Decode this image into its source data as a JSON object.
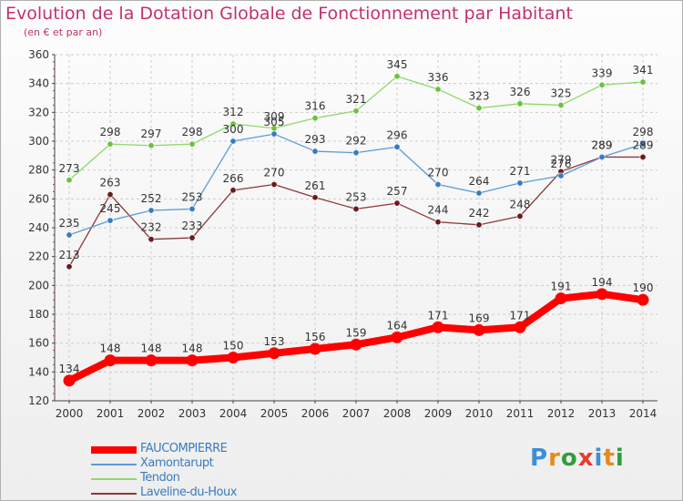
{
  "title": "Evolution de la Dotation Globale de Fonctionnement par Habitant",
  "subtitle": "(en € et par an)",
  "colors": {
    "title": "#c3306e",
    "grid": "#cccccc",
    "axis": "#444444",
    "tick_text": "#333333"
  },
  "logo": {
    "letters": [
      "P",
      "r",
      "o",
      "x",
      "i",
      "t",
      "i"
    ],
    "colors": [
      "#3a8fd6",
      "#e58a1c",
      "#2f9e3a",
      "#e63b2e",
      "#3a8fd6",
      "#e58a1c",
      "#2f9e3a"
    ]
  },
  "chart_data": {
    "type": "line",
    "title": "Evolution de la Dotation Globale de Fonctionnement par Habitant",
    "subtitle": "(en € et par an)",
    "x": [
      "2000",
      "2001",
      "2002",
      "2003",
      "2004",
      "2005",
      "2006",
      "2007",
      "2008",
      "2009",
      "2010",
      "2011",
      "2012",
      "2013",
      "2014"
    ],
    "ylim": [
      120,
      360
    ],
    "yticks": [
      120,
      140,
      160,
      180,
      200,
      220,
      240,
      260,
      280,
      300,
      320,
      340,
      360
    ],
    "grid": true,
    "legend_position": "bottom-left",
    "series": [
      {
        "name": "FAUCOMPIERRE",
        "color": "#ff0000",
        "marker_color": "#ff0000",
        "emphasis": true,
        "values": [
          134,
          148,
          148,
          148,
          150,
          153,
          156,
          159,
          164,
          171,
          169,
          171,
          191,
          194,
          190
        ]
      },
      {
        "name": "Xamontarupt",
        "color": "#5b9bd5",
        "marker_color": "#3a7bbf",
        "emphasis": false,
        "values": [
          235,
          245,
          252,
          253,
          300,
          305,
          293,
          292,
          296,
          270,
          264,
          271,
          276,
          289,
          298
        ]
      },
      {
        "name": "Tendon",
        "color": "#8fd86a",
        "marker_color": "#6cc23a",
        "emphasis": false,
        "values": [
          273,
          298,
          297,
          298,
          312,
          309,
          316,
          321,
          345,
          336,
          323,
          326,
          325,
          339,
          341
        ]
      },
      {
        "name": "Laveline-du-Houx",
        "color": "#8b3a3a",
        "marker_color": "#6b1a1a",
        "emphasis": false,
        "values": [
          213,
          263,
          232,
          233,
          266,
          270,
          261,
          253,
          257,
          244,
          242,
          248,
          279,
          289,
          289
        ]
      }
    ]
  }
}
